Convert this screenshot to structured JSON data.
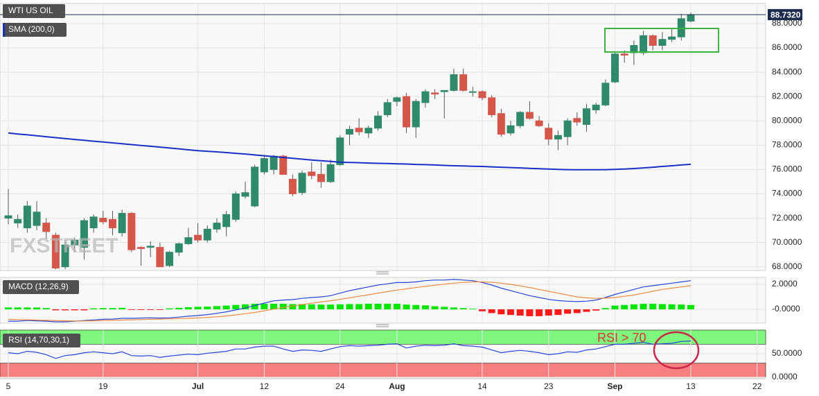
{
  "chart_data": [
    {
      "type": "candlestick",
      "title": "WTI US OIL",
      "watermark": "FXSTREET",
      "categories": [
        "5",
        null,
        null,
        null,
        null,
        null,
        null,
        null,
        null,
        null,
        "19",
        null,
        null,
        null,
        null,
        null,
        null,
        null,
        null,
        null,
        "Jul",
        null,
        null,
        null,
        null,
        null,
        null,
        "12",
        null,
        null,
        null,
        null,
        null,
        null,
        null,
        "24",
        null,
        null,
        null,
        null,
        null,
        "Aug",
        null,
        null,
        null,
        null,
        null,
        null,
        null,
        null,
        "14",
        null,
        null,
        null,
        null,
        null,
        null,
        "23",
        null,
        null,
        null,
        null,
        null,
        null,
        "Sep",
        null,
        null,
        null,
        null,
        null,
        null,
        null,
        "13",
        null,
        null,
        null,
        null,
        null,
        null,
        "22"
      ],
      "open": [
        72.0,
        71.6,
        71.2,
        71.4,
        71.6,
        70.6,
        68.0,
        69.8,
        69.6,
        71.2,
        72.0,
        71.9,
        70.8,
        72.4,
        69.6,
        69.6,
        69.6,
        68.1,
        69.2,
        69.9,
        70.6,
        70.2,
        71.1,
        71.3,
        71.9,
        73.8,
        73.0,
        75.8,
        76.0,
        77.1,
        75.2,
        74.1,
        75.8,
        75.6,
        75.0,
        76.4,
        78.9,
        79.4,
        79.0,
        79.4,
        80.5,
        81.6,
        82.0,
        79.5,
        81.5,
        82.3,
        82.4,
        82.5,
        83.8,
        82.4,
        82.4,
        81.9,
        80.6,
        79.0,
        79.6,
        80.7,
        80.0,
        79.4,
        78.5,
        78.7,
        80.2,
        79.7,
        80.9,
        81.3,
        83.2,
        85.5,
        85.6,
        85.6,
        87.0,
        86.2,
        86.7,
        86.9,
        88.2,
        null,
        null,
        null,
        null,
        null,
        null,
        null
      ],
      "high": [
        74.4,
        72.3,
        73.4,
        73.4,
        72.0,
        70.8,
        70.2,
        70.4,
        72.0,
        72.3,
        72.6,
        72.6,
        72.7,
        72.5,
        69.7,
        70.1,
        70.0,
        69.3,
        70.0,
        71.2,
        71.6,
        71.4,
        72.0,
        72.6,
        74.2,
        75.0,
        76.4,
        77.2,
        77.2,
        77.2,
        75.6,
        75.9,
        76.6,
        76.6,
        76.8,
        78.8,
        79.6,
        80.2,
        79.6,
        80.8,
        81.8,
        82.0,
        82.3,
        81.8,
        82.6,
        82.6,
        82.5,
        84.3,
        84.3,
        82.8,
        82.5,
        82.1,
        81.0,
        80.0,
        80.8,
        81.6,
        80.4,
        79.8,
        79.2,
        80.2,
        80.7,
        81.4,
        81.5,
        83.4,
        85.7,
        85.8,
        86.6,
        87.4,
        87.1,
        87.3,
        87.6,
        88.8,
        88.9,
        null,
        null,
        null,
        null,
        null,
        null,
        null
      ],
      "low": [
        71.5,
        71.2,
        70.8,
        71.0,
        70.3,
        67.8,
        67.8,
        69.2,
        68.6,
        70.8,
        71.5,
        70.6,
        70.5,
        69.2,
        68.1,
        68.8,
        68.0,
        68.0,
        68.9,
        69.8,
        70.0,
        70.0,
        70.8,
        70.5,
        71.7,
        73.6,
        72.9,
        75.6,
        75.6,
        75.6,
        73.8,
        73.9,
        75.2,
        74.5,
        74.9,
        76.3,
        78.0,
        78.8,
        78.6,
        79.2,
        80.3,
        81.2,
        79.0,
        78.6,
        81.1,
        81.8,
        80.2,
        82.4,
        82.4,
        82.0,
        81.7,
        80.3,
        78.7,
        78.8,
        79.4,
        80.1,
        79.5,
        78.0,
        77.6,
        78.0,
        79.6,
        79.1,
        80.6,
        81.2,
        83.1,
        84.8,
        84.6,
        85.4,
        85.8,
        85.8,
        86.5,
        86.6,
        88.1,
        null,
        null,
        null,
        null,
        null,
        null,
        null
      ],
      "close": [
        72.2,
        71.9,
        73.0,
        72.5,
        70.9,
        67.9,
        69.8,
        70.2,
        71.8,
        72.1,
        71.7,
        71.2,
        72.4,
        69.4,
        69.5,
        69.7,
        68.0,
        69.2,
        69.9,
        70.4,
        70.2,
        71.1,
        71.6,
        72.3,
        74.0,
        74.1,
        76.2,
        76.9,
        77.1,
        75.6,
        74.0,
        75.7,
        75.5,
        75.0,
        76.4,
        78.6,
        79.3,
        79.1,
        79.4,
        80.4,
        81.5,
        81.9,
        79.5,
        81.6,
        82.4,
        82.2,
        82.5,
        83.8,
        82.5,
        82.4,
        81.9,
        80.5,
        78.9,
        79.6,
        80.7,
        80.2,
        79.6,
        78.5,
        78.8,
        80.0,
        79.9,
        81.0,
        81.3,
        83.1,
        85.5,
        85.4,
        86.2,
        87.0,
        86.2,
        86.7,
        86.9,
        88.4,
        88.73,
        null,
        null,
        null,
        null,
        null,
        null,
        null
      ],
      "up_color": "#2f8a6c",
      "down_color": "#d5574a",
      "series": [
        {
          "name": "SMA (200,0)",
          "color": "#1a2ec8",
          "values": [
            79.0,
            78.92,
            78.85,
            78.77,
            78.7,
            78.62,
            78.55,
            78.47,
            78.4,
            78.33,
            78.26,
            78.19,
            78.12,
            78.05,
            77.98,
            77.91,
            77.84,
            77.77,
            77.7,
            77.62,
            77.55,
            77.5,
            77.45,
            77.39,
            77.33,
            77.27,
            77.2,
            77.13,
            77.06,
            76.99,
            76.92,
            76.85,
            76.78,
            76.72,
            76.66,
            76.6,
            76.58,
            76.56,
            76.53,
            76.51,
            76.49,
            76.47,
            76.45,
            76.42,
            76.4,
            76.37,
            76.34,
            76.31,
            76.29,
            76.27,
            76.25,
            76.22,
            76.19,
            76.16,
            76.13,
            76.1,
            76.07,
            76.04,
            76.01,
            75.99,
            75.98,
            75.98,
            75.98,
            75.99,
            76.01,
            76.04,
            76.08,
            76.13,
            76.19,
            76.25,
            76.31,
            76.37,
            76.43,
            null,
            null,
            null,
            null,
            null,
            null,
            null
          ]
        }
      ],
      "ylim": [
        67.7,
        89.65
      ],
      "yticks": [
        {
          "value": 68,
          "label": "68.0000"
        },
        {
          "value": 70,
          "label": "70.0000"
        },
        {
          "value": 72,
          "label": "72.0000"
        },
        {
          "value": 74,
          "label": "74.0000"
        },
        {
          "value": 76,
          "label": "76.0000"
        },
        {
          "value": 78,
          "label": "78.0000"
        },
        {
          "value": 80,
          "label": "80.0000"
        },
        {
          "value": 82,
          "label": "82.0000"
        },
        {
          "value": 84,
          "label": "84.0000"
        },
        {
          "value": 86,
          "label": "86.0000"
        },
        {
          "value": 88,
          "label": "88.0000"
        }
      ],
      "last_price": {
        "value": 88.732,
        "label": "88.7320"
      },
      "grid": true
    },
    {
      "type": "macd",
      "title": "MACD (12,26,9)",
      "series": [
        {
          "color": "#2446d8",
          "values": [
            -0.95,
            -0.95,
            -0.9,
            -0.92,
            -0.95,
            -1.0,
            -1.0,
            -0.95,
            -0.9,
            -0.85,
            -0.8,
            -0.78,
            -0.72,
            -0.72,
            -0.7,
            -0.68,
            -0.7,
            -0.68,
            -0.62,
            -0.55,
            -0.5,
            -0.42,
            -0.32,
            -0.2,
            -0.05,
            0.1,
            0.3,
            0.5,
            0.68,
            0.75,
            0.78,
            0.88,
            0.95,
            1.0,
            1.1,
            1.3,
            1.5,
            1.65,
            1.8,
            1.95,
            2.05,
            2.15,
            2.15,
            2.2,
            2.3,
            2.35,
            2.35,
            2.4,
            2.35,
            2.3,
            2.15,
            1.95,
            1.7,
            1.5,
            1.3,
            1.1,
            0.95,
            0.8,
            0.7,
            0.65,
            0.62,
            0.65,
            0.75,
            0.95,
            1.2,
            1.4,
            1.6,
            1.8,
            1.9,
            2.0,
            2.1,
            2.2,
            2.3,
            null,
            null,
            null,
            null,
            null,
            null,
            null
          ]
        },
        {
          "color": "#f08a3c",
          "values": [
            -0.8,
            -0.82,
            -0.84,
            -0.86,
            -0.88,
            -0.9,
            -0.92,
            -0.93,
            -0.93,
            -0.92,
            -0.9,
            -0.88,
            -0.86,
            -0.84,
            -0.82,
            -0.8,
            -0.78,
            -0.76,
            -0.74,
            -0.72,
            -0.69,
            -0.65,
            -0.6,
            -0.53,
            -0.45,
            -0.35,
            -0.25,
            -0.12,
            0.02,
            0.15,
            0.27,
            0.38,
            0.49,
            0.59,
            0.69,
            0.8,
            0.92,
            1.05,
            1.17,
            1.3,
            1.42,
            1.54,
            1.64,
            1.74,
            1.84,
            1.93,
            2.02,
            2.1,
            2.16,
            2.2,
            2.2,
            2.17,
            2.1,
            2.0,
            1.88,
            1.75,
            1.6,
            1.45,
            1.3,
            1.15,
            1.0,
            0.92,
            0.88,
            0.9,
            0.95,
            1.05,
            1.15,
            1.3,
            1.45,
            1.6,
            1.7,
            1.8,
            1.9,
            null,
            null,
            null,
            null,
            null,
            null,
            null
          ]
        }
      ],
      "histogram": {
        "up_color": "#00e600",
        "down_color": "#ff1a1a",
        "values": [
          0.15,
          0.15,
          0.15,
          0.15,
          0.1,
          -0.08,
          -0.08,
          -0.08,
          -0.08,
          0.08,
          0.1,
          0.1,
          0.12,
          -0.05,
          -0.05,
          -0.05,
          -0.05,
          0.08,
          0.12,
          0.17,
          0.2,
          0.22,
          0.26,
          0.3,
          0.35,
          0.4,
          0.45,
          0.45,
          0.45,
          0.45,
          0.42,
          0.42,
          0.4,
          0.38,
          0.38,
          0.4,
          0.42,
          0.42,
          0.45,
          0.45,
          0.45,
          0.45,
          0.38,
          0.35,
          0.32,
          0.25,
          0.2,
          0.15,
          0.1,
          0.05,
          -0.15,
          -0.3,
          -0.4,
          -0.45,
          -0.5,
          -0.55,
          -0.55,
          -0.5,
          -0.45,
          -0.35,
          -0.3,
          -0.2,
          -0.1,
          0.1,
          0.3,
          0.35,
          0.4,
          0.45,
          0.45,
          0.42,
          0.4,
          0.38,
          0.35,
          null,
          null,
          null,
          null,
          null,
          null,
          null
        ]
      },
      "ylim": [
        -1.11,
        2.56
      ],
      "yticks": [
        {
          "value": 2,
          "label": "2.0000"
        },
        {
          "value": 0,
          "label": "-0.0000"
        }
      ]
    },
    {
      "type": "rsi",
      "title": "RSI (14,70,30,1)",
      "annotation": "RSI > 70",
      "series": [
        {
          "color": "#2446d8",
          "values": [
            52,
            50,
            55,
            53,
            48,
            40,
            46,
            48,
            52,
            54,
            52,
            50,
            54,
            46,
            45,
            46,
            42,
            45,
            47,
            49,
            48,
            51,
            53,
            55,
            60,
            60,
            64,
            66,
            66,
            60,
            55,
            58,
            57,
            55,
            60,
            65,
            67,
            66,
            67,
            68,
            70,
            71,
            62,
            66,
            68,
            67,
            68,
            71,
            67,
            66,
            64,
            58,
            52,
            55,
            57,
            55,
            52,
            48,
            50,
            54,
            53,
            58,
            60,
            65,
            70,
            70,
            72,
            74,
            70,
            71,
            72,
            76,
            77,
            null,
            null,
            null,
            null,
            null,
            null,
            null
          ]
        }
      ],
      "bands": [
        {
          "range": [
            70,
            100
          ],
          "color": "#7ff77f"
        },
        {
          "range": [
            0,
            30
          ],
          "color": "#f77f7f"
        }
      ],
      "ylim": [
        0,
        100
      ],
      "yticks": [
        {
          "value": 50,
          "label": "50.0000"
        },
        {
          "value": 0,
          "label": "0.0000"
        }
      ]
    }
  ]
}
